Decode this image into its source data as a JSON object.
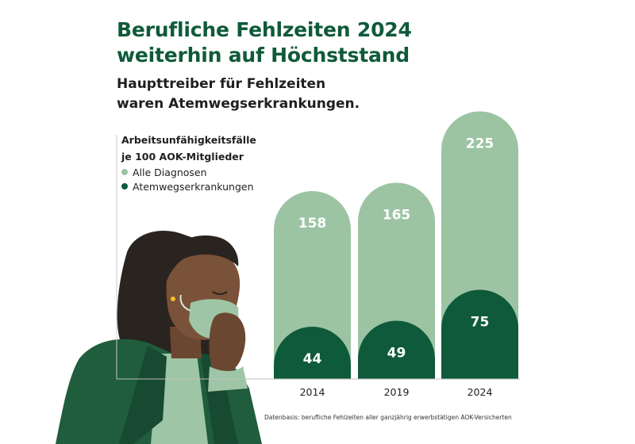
{
  "title_line1": "Berufliche Fehlzeiten 2024",
  "title_line2": "weiterhin auf Höchststand",
  "subtitle_line1": "Haupttreiber für Fehlzeiten",
  "subtitle_line2": "waren Atemwegserkrankungen.",
  "source": "Datenbasis: berufliche Fehlzeiten aller ganzjährig erwerbstätigen AOK-Versicherten",
  "colors": {
    "title": "#0f5a3a",
    "light_green": "#9cc4a3",
    "dark_green": "#0f5a3a"
  },
  "chart_data": {
    "type": "bar",
    "ylabel_line1": "Arbeitsunfähigkeitsfälle",
    "ylabel_line2": "je 100 AOK-Mitglieder",
    "categories": [
      "2014",
      "2019",
      "2024"
    ],
    "series": [
      {
        "name": "Alle Diagnosen",
        "values": [
          158,
          165,
          225
        ],
        "color": "#9cc4a3"
      },
      {
        "name": "Atemwegserkrankungen",
        "values": [
          44,
          49,
          75
        ],
        "color": "#0f5a3a"
      }
    ],
    "layout": "overlapping",
    "legend_position": "left",
    "grid": false
  }
}
